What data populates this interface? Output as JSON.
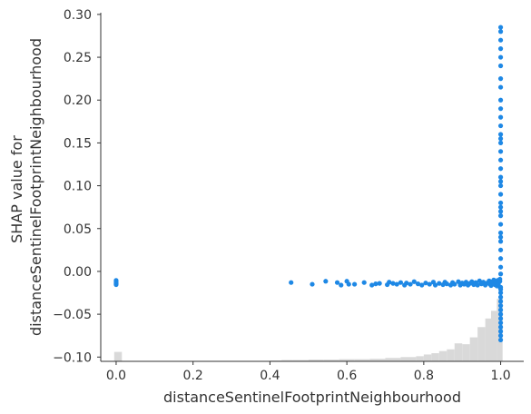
{
  "chart_data": {
    "type": "scatter",
    "xlabel": "distanceSentinelFootprintNeighbourhood",
    "ylabel_lines": [
      "SHAP value for",
      "distanceSentinelFootprintNeighbourhood"
    ],
    "xlim": [
      -0.04,
      1.06
    ],
    "ylim": [
      -0.105,
      0.302
    ],
    "x_ticks": [
      0.0,
      0.2,
      0.4,
      0.6,
      0.8,
      1.0
    ],
    "x_tick_labels": [
      "0.0",
      "0.2",
      "0.4",
      "0.6",
      "0.8",
      "1.0"
    ],
    "y_ticks": [
      -0.1,
      -0.05,
      0.0,
      0.05,
      0.1,
      0.15,
      0.2,
      0.25,
      0.3
    ],
    "y_tick_labels": [
      "−0.10",
      "−0.05",
      "0.00",
      "0.05",
      "0.10",
      "0.15",
      "0.20",
      "0.25",
      "0.30"
    ],
    "grid": false,
    "point_color": "#1e88e5",
    "histogram_color": "#d9d9d9",
    "histogram": {
      "bin_edges": [
        -0.005,
        0.015,
        0.4,
        0.43,
        0.46,
        0.5,
        0.54,
        0.58,
        0.62,
        0.66,
        0.7,
        0.74,
        0.78,
        0.8,
        0.82,
        0.84,
        0.86,
        0.88,
        0.9,
        0.92,
        0.94,
        0.96,
        0.975,
        0.99,
        1.005
      ],
      "heights": [
        -0.094,
        -0.1045,
        -0.104,
        -0.1035,
        -0.1035,
        -0.103,
        -0.103,
        -0.1025,
        -0.1025,
        -0.102,
        -0.101,
        -0.1,
        -0.099,
        -0.097,
        -0.0955,
        -0.093,
        -0.091,
        -0.084,
        -0.085,
        -0.077,
        -0.065,
        -0.055,
        -0.046,
        -0.032
      ]
    },
    "points": [
      [
        0.0,
        -0.0105
      ],
      [
        0.0,
        -0.0125
      ],
      [
        0.0,
        -0.014
      ],
      [
        0.0,
        -0.0155
      ],
      [
        0.455,
        -0.013
      ],
      [
        0.51,
        -0.015
      ],
      [
        0.545,
        -0.0115
      ],
      [
        0.575,
        -0.013
      ],
      [
        0.585,
        -0.016
      ],
      [
        0.6,
        -0.0115
      ],
      [
        0.605,
        -0.015
      ],
      [
        0.62,
        -0.015
      ],
      [
        0.645,
        -0.013
      ],
      [
        0.665,
        -0.016
      ],
      [
        0.675,
        -0.0145
      ],
      [
        0.685,
        -0.014
      ],
      [
        0.705,
        -0.0155
      ],
      [
        0.71,
        -0.0125
      ],
      [
        0.72,
        -0.014
      ],
      [
        0.73,
        -0.015
      ],
      [
        0.74,
        -0.013
      ],
      [
        0.75,
        -0.016
      ],
      [
        0.755,
        -0.0135
      ],
      [
        0.765,
        -0.015
      ],
      [
        0.775,
        -0.012
      ],
      [
        0.785,
        -0.0145
      ],
      [
        0.795,
        -0.016
      ],
      [
        0.805,
        -0.0135
      ],
      [
        0.815,
        -0.015
      ],
      [
        0.825,
        -0.0125
      ],
      [
        0.83,
        -0.016
      ],
      [
        0.84,
        -0.014
      ],
      [
        0.85,
        -0.0155
      ],
      [
        0.855,
        -0.0125
      ],
      [
        0.86,
        -0.0145
      ],
      [
        0.87,
        -0.016
      ],
      [
        0.875,
        -0.013
      ],
      [
        0.88,
        -0.015
      ],
      [
        0.89,
        -0.012
      ],
      [
        0.895,
        -0.016
      ],
      [
        0.9,
        -0.0135
      ],
      [
        0.905,
        -0.015
      ],
      [
        0.91,
        -0.0125
      ],
      [
        0.915,
        -0.016
      ],
      [
        0.92,
        -0.014
      ],
      [
        0.925,
        -0.012
      ],
      [
        0.93,
        -0.0155
      ],
      [
        0.935,
        -0.013
      ],
      [
        0.94,
        -0.016
      ],
      [
        0.945,
        -0.011
      ],
      [
        0.95,
        -0.0145
      ],
      [
        0.955,
        -0.0125
      ],
      [
        0.96,
        -0.016
      ],
      [
        0.965,
        -0.0135
      ],
      [
        0.97,
        -0.011
      ],
      [
        0.972,
        -0.015
      ],
      [
        0.975,
        -0.0165
      ],
      [
        0.978,
        -0.012
      ],
      [
        0.98,
        -0.014
      ],
      [
        0.982,
        -0.01
      ],
      [
        0.985,
        -0.0155
      ],
      [
        0.987,
        -0.0125
      ],
      [
        0.99,
        -0.017
      ],
      [
        0.992,
        -0.0105
      ],
      [
        0.994,
        -0.014
      ],
      [
        0.996,
        -0.0175
      ],
      [
        0.998,
        -0.0115
      ],
      [
        0.998,
        -0.009
      ],
      [
        1.0,
        -0.0185
      ],
      [
        1.0,
        -0.021
      ],
      [
        1.0,
        -0.025
      ],
      [
        1.0,
        -0.03
      ],
      [
        1.0,
        -0.035
      ],
      [
        1.0,
        -0.04
      ],
      [
        1.0,
        -0.045
      ],
      [
        1.0,
        -0.05
      ],
      [
        1.0,
        -0.055
      ],
      [
        1.0,
        -0.06
      ],
      [
        1.0,
        -0.065
      ],
      [
        1.0,
        -0.07
      ],
      [
        1.0,
        -0.075
      ],
      [
        1.0,
        -0.08
      ],
      [
        1.0,
        -0.003
      ],
      [
        1.0,
        0.005
      ],
      [
        1.0,
        0.015
      ],
      [
        1.0,
        0.025
      ],
      [
        1.0,
        0.035
      ],
      [
        1.0,
        0.04
      ],
      [
        1.0,
        0.045
      ],
      [
        1.0,
        0.055
      ],
      [
        1.0,
        0.065
      ],
      [
        1.0,
        0.07
      ],
      [
        1.0,
        0.075
      ],
      [
        1.0,
        0.08
      ],
      [
        1.0,
        0.09
      ],
      [
        1.0,
        0.1
      ],
      [
        1.0,
        0.105
      ],
      [
        1.0,
        0.11
      ],
      [
        1.0,
        0.12
      ],
      [
        1.0,
        0.13
      ],
      [
        1.0,
        0.14
      ],
      [
        1.0,
        0.15
      ],
      [
        1.0,
        0.155
      ],
      [
        1.0,
        0.16
      ],
      [
        1.0,
        0.17
      ],
      [
        1.0,
        0.18
      ],
      [
        1.0,
        0.19
      ],
      [
        1.0,
        0.2
      ],
      [
        1.0,
        0.215
      ],
      [
        1.0,
        0.225
      ],
      [
        1.0,
        0.24
      ],
      [
        1.0,
        0.25
      ],
      [
        1.0,
        0.26
      ],
      [
        1.0,
        0.27
      ],
      [
        1.0,
        0.28
      ],
      [
        1.0,
        0.285
      ]
    ]
  }
}
